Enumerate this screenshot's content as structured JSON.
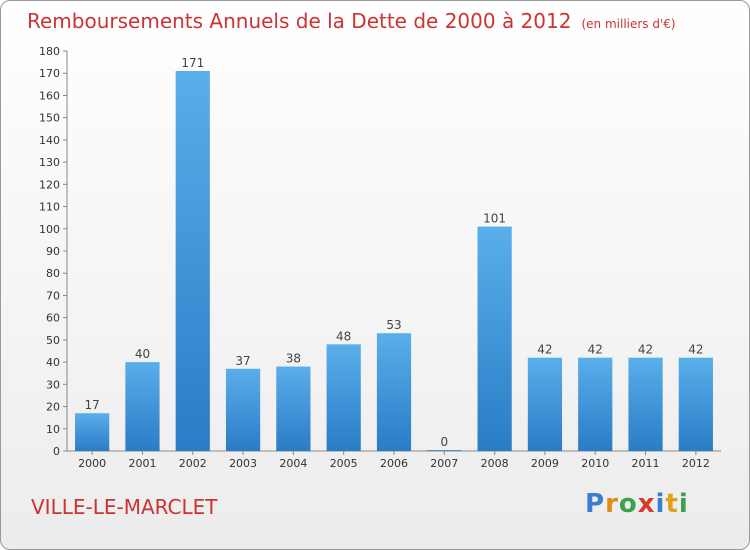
{
  "chart_data": {
    "type": "bar",
    "title": "Remboursements Annuels de la Dette de 2000 à 2012",
    "subtitle": "(en milliers d'€)",
    "categories": [
      "2000",
      "2001",
      "2002",
      "2003",
      "2004",
      "2005",
      "2006",
      "2007",
      "2008",
      "2009",
      "2010",
      "2011",
      "2012"
    ],
    "values": [
      17,
      40,
      171,
      37,
      38,
      48,
      53,
      0,
      101,
      42,
      42,
      42,
      42
    ],
    "ylim": [
      0,
      180
    ],
    "yticks": [
      0,
      10,
      20,
      30,
      40,
      50,
      60,
      70,
      80,
      90,
      100,
      110,
      120,
      130,
      140,
      150,
      160,
      170,
      180
    ],
    "grid": false,
    "bar_color": "#4a9de0"
  },
  "footer": {
    "town": "VILLE-LE-MARCLET",
    "logo": "Proxiti"
  }
}
